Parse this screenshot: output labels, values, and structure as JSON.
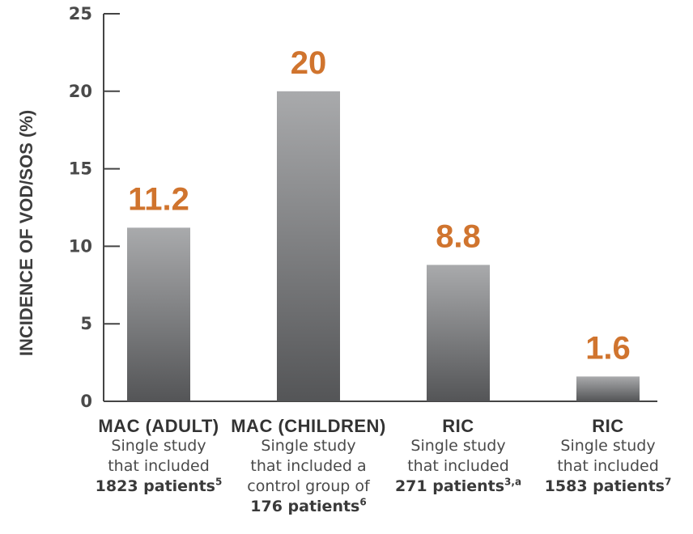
{
  "chart_data": {
    "type": "bar",
    "ylabel": "INCIDENCE OF VOD/SOS (%)",
    "ylim": [
      0,
      25
    ],
    "yticks": [
      0,
      5,
      10,
      15,
      20,
      25
    ],
    "categories": [
      "MAC (ADULT)",
      "MAC (CHILDREN)",
      "RIC",
      "RIC"
    ],
    "values": [
      11.2,
      20,
      8.8,
      1.6
    ],
    "data_labels": [
      "11.2",
      "20",
      "8.8",
      "1.6"
    ],
    "category_details": [
      {
        "lines": [
          "Single study",
          "that included"
        ],
        "patients": "1823 patients",
        "ref": "5"
      },
      {
        "lines": [
          "Single study",
          "that included a",
          "control group of"
        ],
        "patients": "176 patients",
        "ref": "6"
      },
      {
        "lines": [
          "Single study",
          "that included"
        ],
        "patients": "271 patients",
        "ref": "3,a"
      },
      {
        "lines": [
          "Single study",
          "that included"
        ],
        "patients": "1583 patients",
        "ref": "7"
      }
    ],
    "colors": {
      "bar_top": "#a9aaac",
      "bar_bottom": "#545557",
      "label": "#d0742e",
      "axis": "#444444"
    },
    "grid": false
  }
}
